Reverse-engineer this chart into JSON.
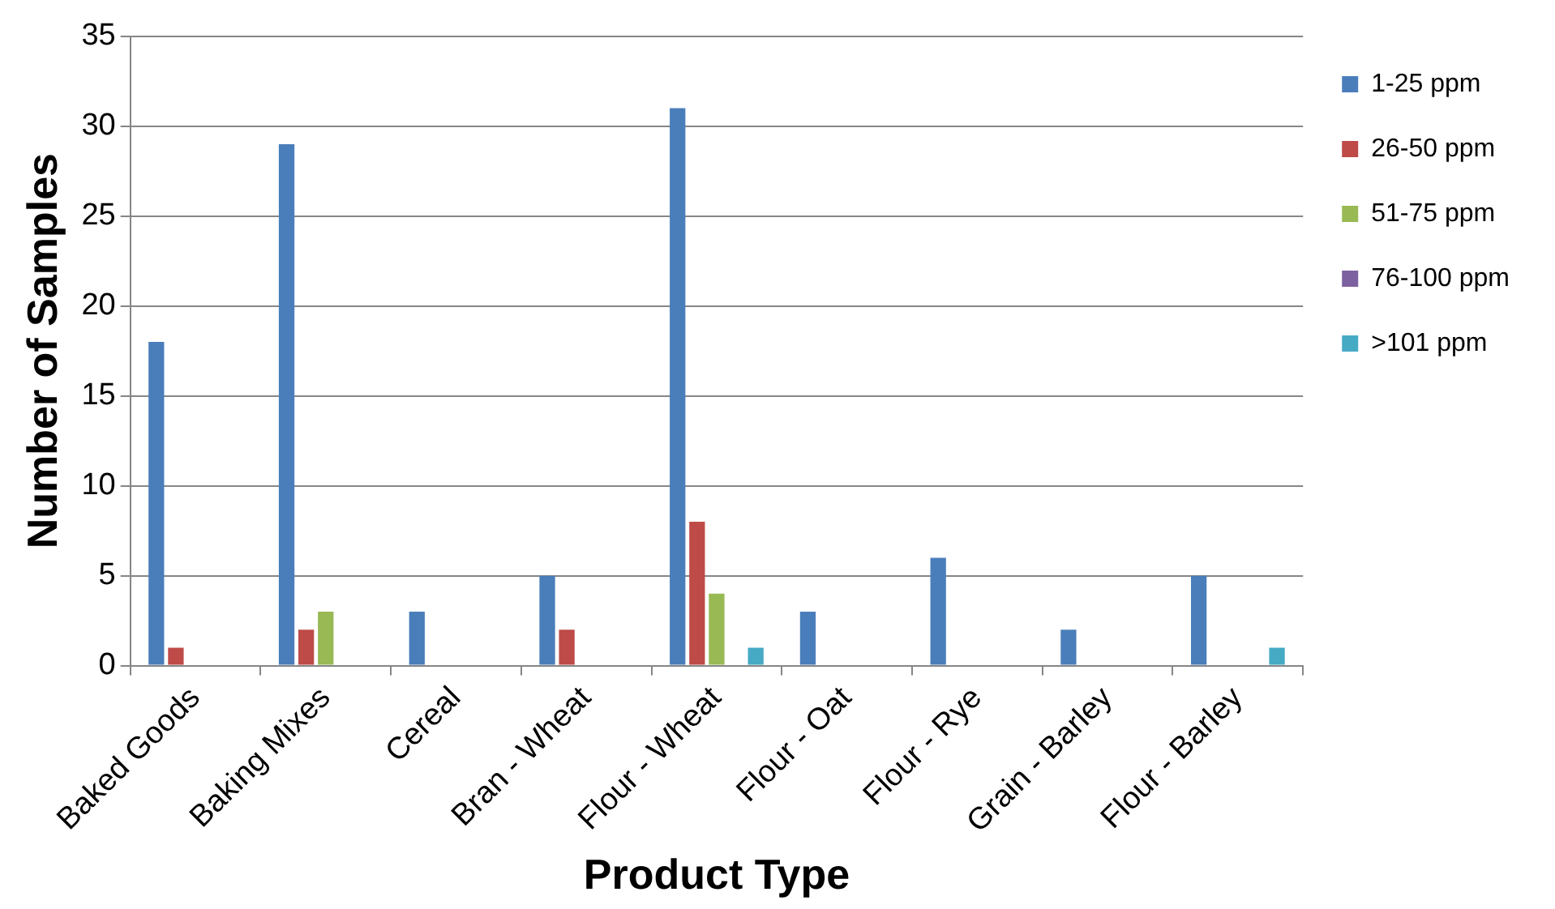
{
  "chart_data": {
    "type": "bar",
    "xlabel": "Product Type",
    "ylabel": "Number of Samples",
    "categories": [
      "Baked Goods",
      "Baking Mixes",
      "Cereal",
      "Bran - Wheat",
      "Flour - Wheat",
      "Flour - Oat",
      "Flour - Rye",
      "Grain - Barley",
      "Flour - Barley"
    ],
    "series": [
      {
        "name": "1-25 ppm",
        "color": "#4a7ebb",
        "values": [
          18,
          29,
          3,
          5,
          31,
          3,
          6,
          2,
          5
        ]
      },
      {
        "name": "26-50 ppm",
        "color": "#be4b48",
        "values": [
          1,
          2,
          0,
          2,
          8,
          0,
          0,
          0,
          0
        ]
      },
      {
        "name": "51-75 ppm",
        "color": "#98b954",
        "values": [
          0,
          3,
          0,
          0,
          4,
          0,
          0,
          0,
          0
        ]
      },
      {
        "name": "76-100 ppm",
        "color": "#7d60a0",
        "values": [
          0,
          0,
          0,
          0,
          0,
          0,
          0,
          0,
          0
        ]
      },
      {
        "name": ">101 ppm",
        "color": "#46aac5",
        "values": [
          0,
          0,
          0,
          0,
          1,
          0,
          0,
          0,
          1
        ]
      }
    ],
    "ylim": [
      0,
      35
    ],
    "yticks": [
      0,
      5,
      10,
      15,
      20,
      25,
      30,
      35
    ],
    "grid": "y",
    "legend": "right"
  }
}
